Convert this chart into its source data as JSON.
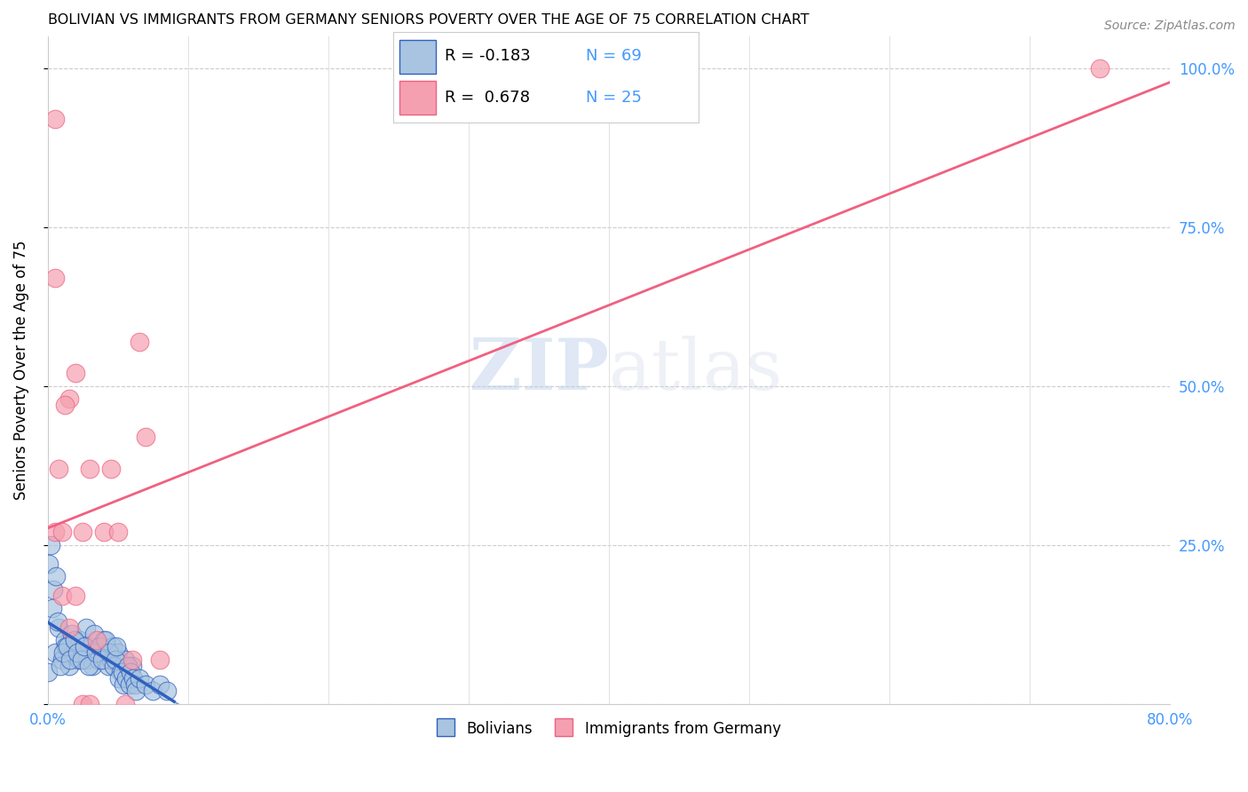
{
  "title": "BOLIVIAN VS IMMIGRANTS FROM GERMANY SENIORS POVERTY OVER THE AGE OF 75 CORRELATION CHART",
  "source": "Source: ZipAtlas.com",
  "ylabel": "Seniors Poverty Over the Age of 75",
  "xlim": [
    0.0,
    0.8
  ],
  "ylim": [
    0.0,
    1.05
  ],
  "xticks": [
    0.0,
    0.1,
    0.2,
    0.3,
    0.4,
    0.5,
    0.6,
    0.7,
    0.8
  ],
  "xticklabels": [
    "0.0%",
    "",
    "",
    "",
    "",
    "",
    "",
    "",
    "80.0%"
  ],
  "ytick_positions": [
    0.0,
    0.25,
    0.5,
    0.75,
    1.0
  ],
  "right_yticklabels": [
    "",
    "25.0%",
    "50.0%",
    "75.0%",
    "100.0%"
  ],
  "blue_color": "#a8c4e0",
  "pink_color": "#f4a0b0",
  "blue_line_color": "#3060c0",
  "pink_line_color": "#f06080",
  "blue_R": -0.183,
  "blue_N": 69,
  "pink_R": 0.678,
  "pink_N": 25,
  "watermark_zip": "ZIP",
  "watermark_atlas": "atlas",
  "legend_label_blue": "Bolivians",
  "legend_label_pink": "Immigrants from Germany",
  "blue_scatter_x": [
    0.0,
    0.005,
    0.008,
    0.01,
    0.012,
    0.013,
    0.015,
    0.017,
    0.018,
    0.02,
    0.022,
    0.023,
    0.025,
    0.027,
    0.028,
    0.03,
    0.031,
    0.032,
    0.033,
    0.035,
    0.036,
    0.038,
    0.04,
    0.042,
    0.043,
    0.045,
    0.046,
    0.05,
    0.055,
    0.06,
    0.003,
    0.007,
    0.009,
    0.011,
    0.014,
    0.016,
    0.019,
    0.021,
    0.024,
    0.026,
    0.029,
    0.034,
    0.037,
    0.039,
    0.041,
    0.044,
    0.047,
    0.048,
    0.049,
    0.052,
    0.001,
    0.002,
    0.004,
    0.006,
    0.051,
    0.053,
    0.054,
    0.056,
    0.057,
    0.058,
    0.059,
    0.061,
    0.062,
    0.063,
    0.065,
    0.07,
    0.075,
    0.08,
    0.085
  ],
  "blue_scatter_y": [
    0.05,
    0.08,
    0.12,
    0.07,
    0.1,
    0.09,
    0.06,
    0.11,
    0.08,
    0.09,
    0.07,
    0.1,
    0.08,
    0.12,
    0.07,
    0.09,
    0.08,
    0.06,
    0.11,
    0.08,
    0.07,
    0.09,
    0.1,
    0.08,
    0.06,
    0.07,
    0.09,
    0.08,
    0.07,
    0.06,
    0.15,
    0.13,
    0.06,
    0.08,
    0.09,
    0.07,
    0.1,
    0.08,
    0.07,
    0.09,
    0.06,
    0.08,
    0.09,
    0.07,
    0.1,
    0.08,
    0.06,
    0.07,
    0.09,
    0.05,
    0.22,
    0.25,
    0.18,
    0.2,
    0.04,
    0.05,
    0.03,
    0.04,
    0.06,
    0.03,
    0.05,
    0.04,
    0.03,
    0.02,
    0.04,
    0.03,
    0.02,
    0.03,
    0.02
  ],
  "pink_scatter_x": [
    0.005,
    0.01,
    0.015,
    0.02,
    0.025,
    0.03,
    0.035,
    0.04,
    0.045,
    0.05,
    0.055,
    0.06,
    0.065,
    0.07,
    0.08,
    0.01,
    0.015,
    0.02,
    0.025,
    0.03,
    0.005,
    0.005,
    0.008,
    0.012,
    0.75
  ],
  "pink_scatter_y": [
    0.27,
    0.27,
    0.48,
    0.52,
    0.27,
    0.37,
    0.1,
    0.27,
    0.37,
    0.27,
    0.0,
    0.07,
    0.57,
    0.42,
    0.07,
    0.17,
    0.12,
    0.17,
    0.0,
    0.0,
    0.92,
    0.67,
    0.37,
    0.47,
    1.0
  ]
}
